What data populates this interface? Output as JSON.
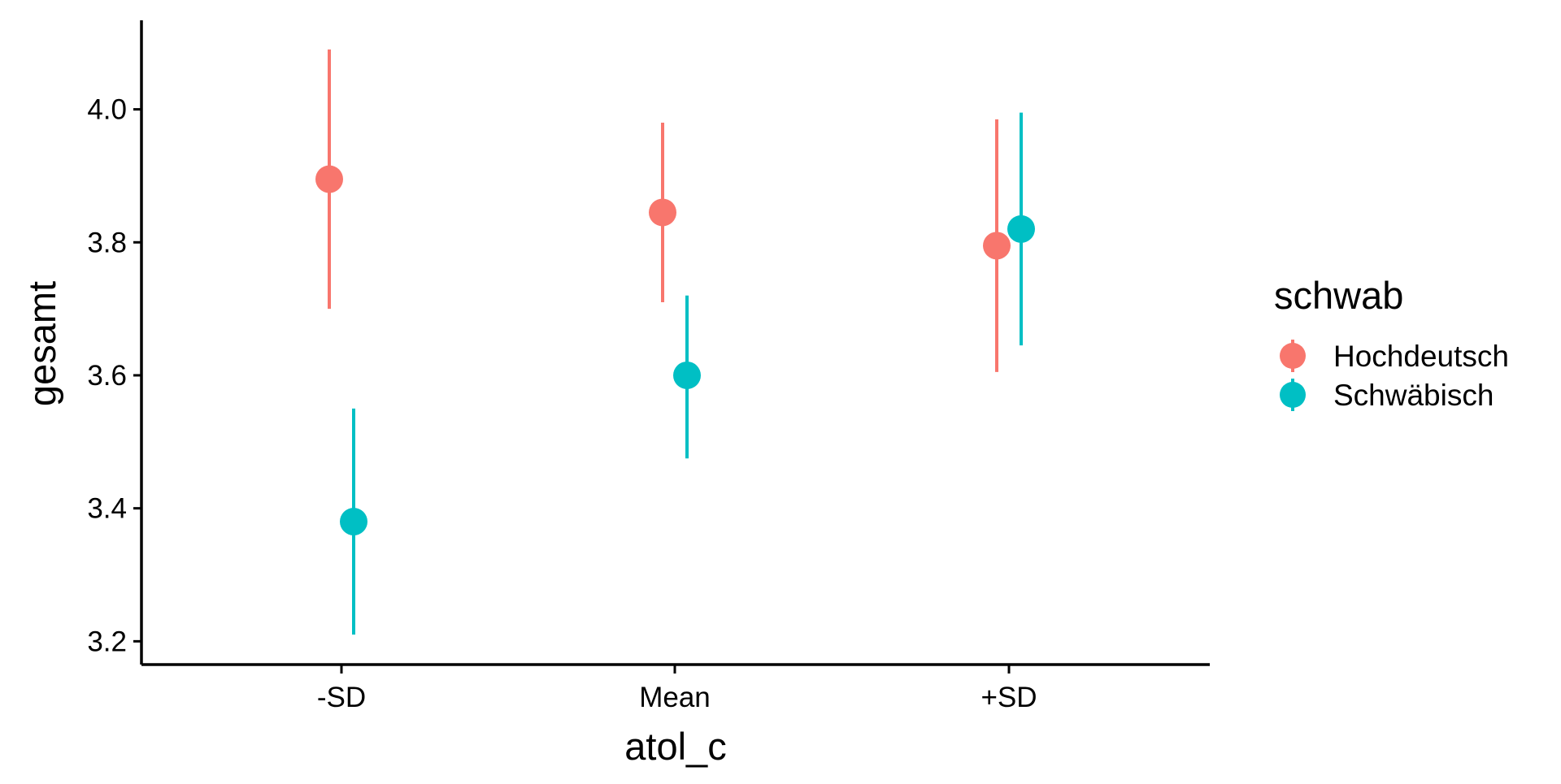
{
  "chart_data": {
    "type": "scatter",
    "subtype": "point-range",
    "title": "",
    "xlabel": "atol_c",
    "ylabel": "gesamt",
    "categories": [
      "-SD",
      "Mean",
      "+SD"
    ],
    "ylim": [
      3.165,
      4.14
    ],
    "yticks": [
      3.2,
      3.4,
      3.6,
      3.8,
      4.0
    ],
    "ytick_labels": [
      "3.2",
      "3.4",
      "3.6",
      "3.8",
      "4.0"
    ],
    "grid": false,
    "legend": {
      "title": "schwab",
      "position": "right"
    },
    "series": [
      {
        "name": "Hochdeutsch",
        "color": "#F8766D",
        "values": [
          3.895,
          3.845,
          3.795
        ],
        "lower": [
          3.7,
          3.71,
          3.605
        ],
        "upper": [
          4.09,
          3.98,
          3.985
        ]
      },
      {
        "name": "Schwäbisch",
        "color": "#00BFC4",
        "values": [
          3.38,
          3.6,
          3.82
        ],
        "lower": [
          3.21,
          3.475,
          3.645
        ],
        "upper": [
          3.55,
          3.72,
          3.995
        ]
      }
    ]
  }
}
